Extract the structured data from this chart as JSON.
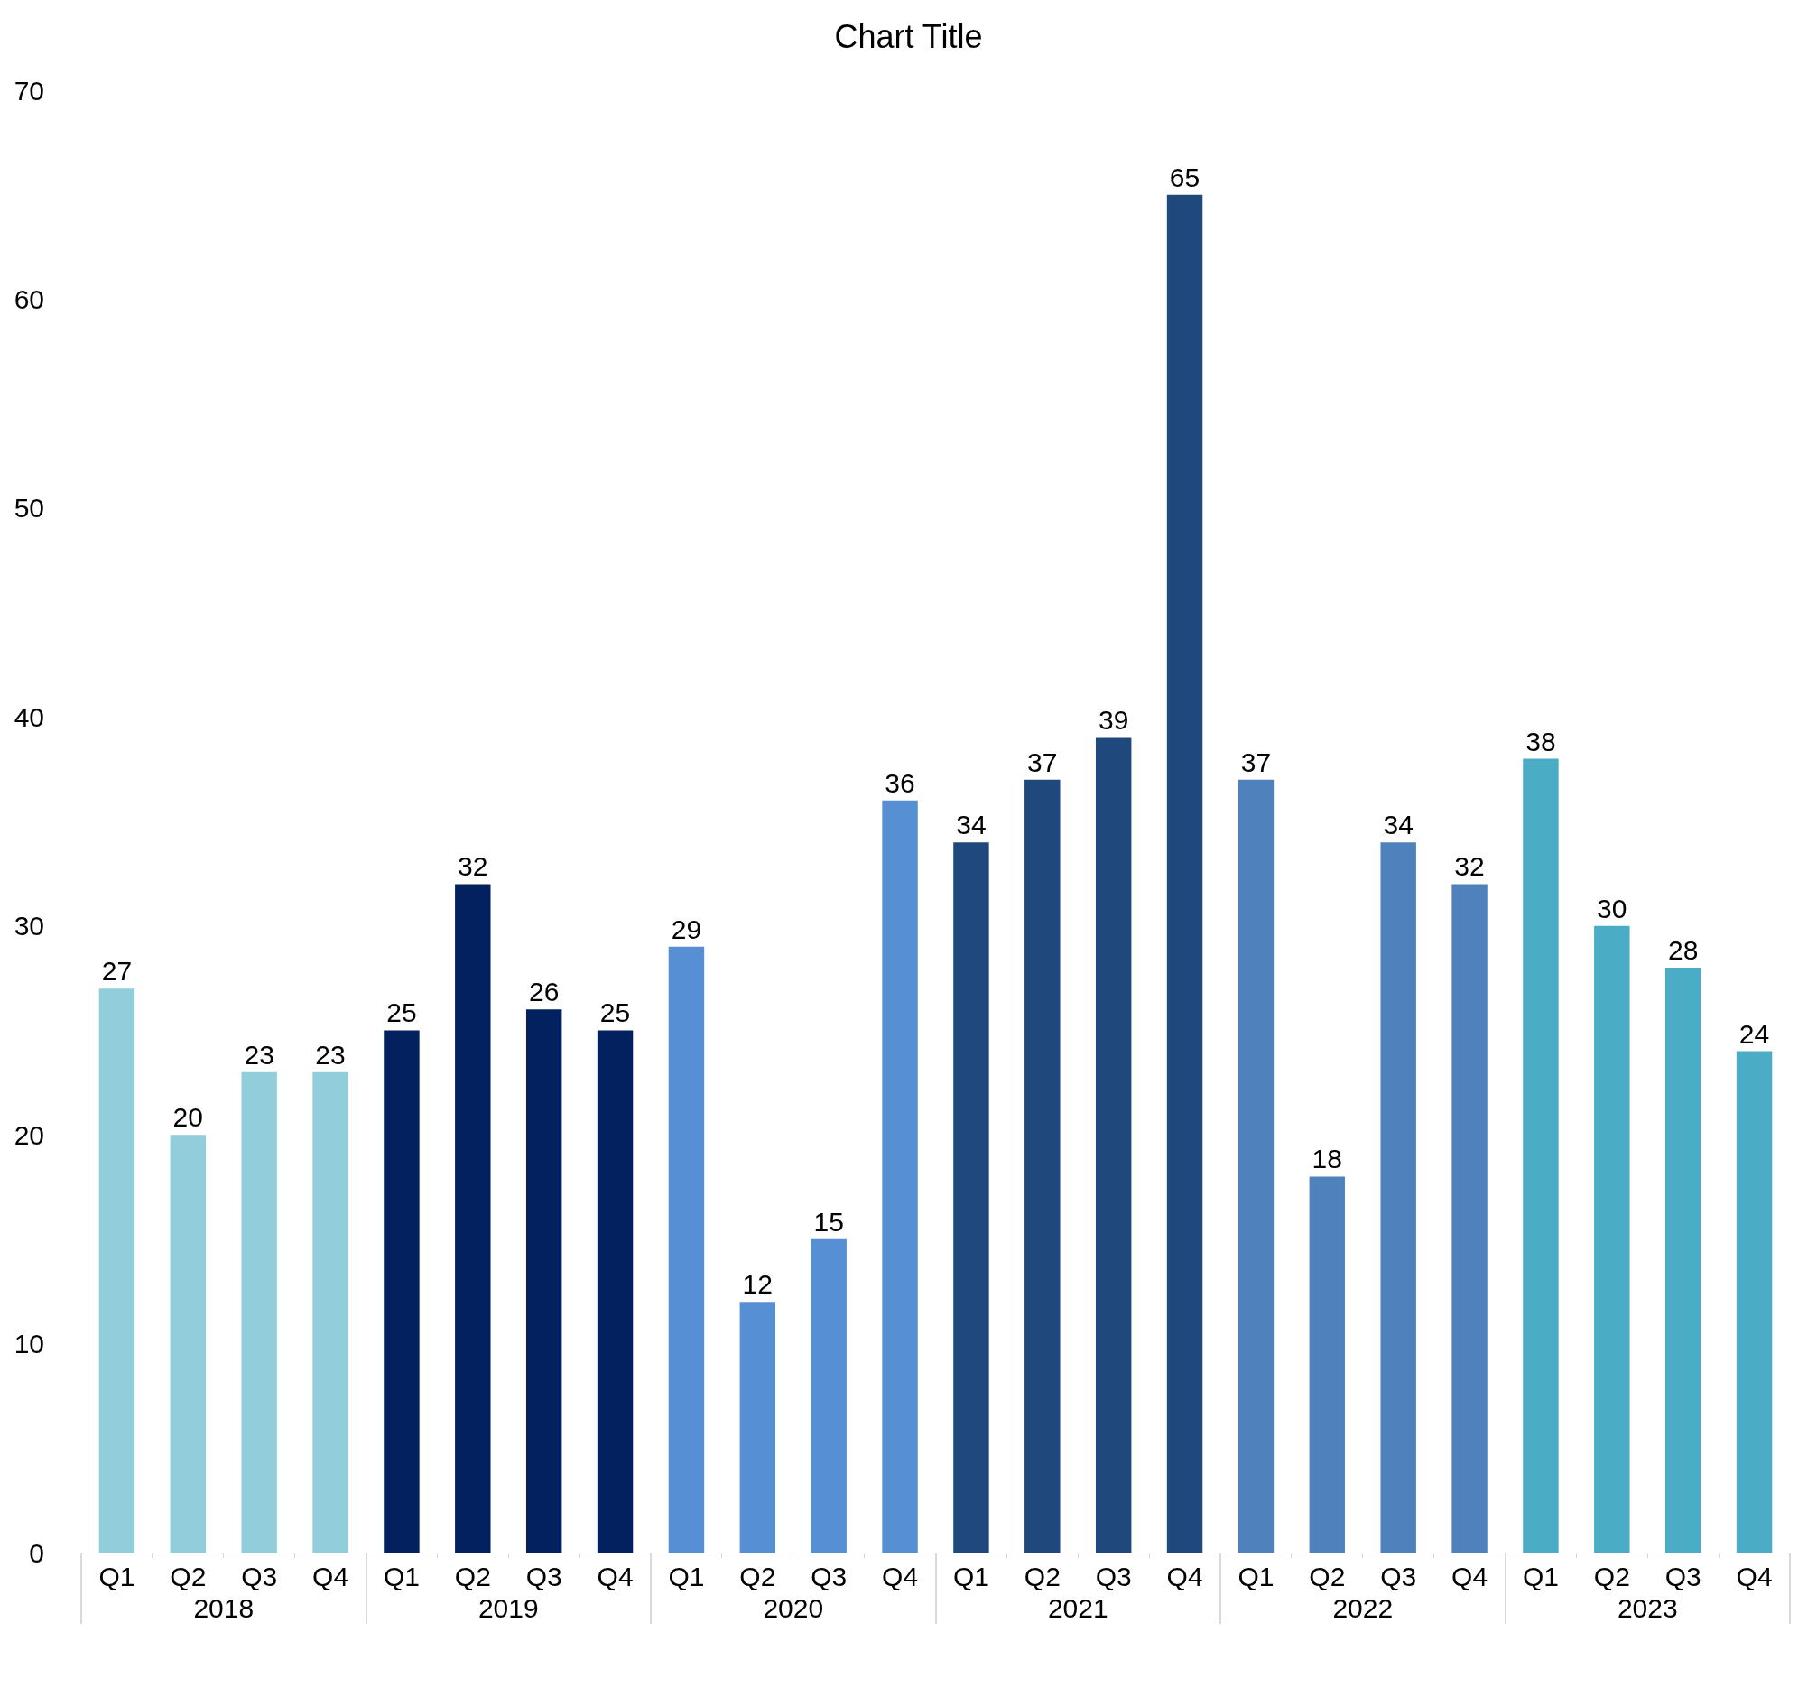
{
  "chart_data": {
    "type": "bar",
    "title": "Chart Title",
    "categories": [
      "Q1",
      "Q2",
      "Q3",
      "Q4",
      "Q1",
      "Q2",
      "Q3",
      "Q4",
      "Q1",
      "Q2",
      "Q3",
      "Q4",
      "Q1",
      "Q2",
      "Q3",
      "Q4",
      "Q1",
      "Q2",
      "Q3",
      "Q4",
      "Q1",
      "Q2",
      "Q3",
      "Q4"
    ],
    "annotations": [
      "2018",
      "2019",
      "2020",
      "2021",
      "2022",
      "2023"
    ],
    "values": [
      27,
      20,
      23,
      23,
      25,
      32,
      26,
      25,
      29,
      12,
      15,
      36,
      34,
      37,
      39,
      65,
      37,
      18,
      34,
      32,
      38,
      30,
      28,
      24
    ],
    "colors": [
      "#92cddc",
      "#92cddc",
      "#92cddc",
      "#92cddc",
      "#03215e",
      "#03215e",
      "#03215e",
      "#03215e",
      "#578fd5",
      "#578fd5",
      "#578fd5",
      "#578fd5",
      "#1f497d",
      "#1f497d",
      "#1f497d",
      "#1f497d",
      "#4f81bd",
      "#4f81bd",
      "#4f81bd",
      "#4f81bd",
      "#4bacc6",
      "#4bacc6",
      "#4bacc6",
      "#4bacc6"
    ],
    "ylim": [
      0,
      70
    ],
    "yticks": [
      0,
      10,
      20,
      30,
      40,
      50,
      60,
      70
    ],
    "data_labels": true
  }
}
